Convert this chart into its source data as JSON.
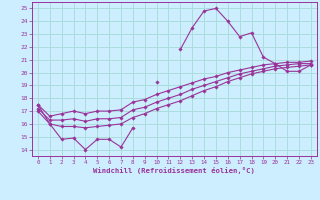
{
  "bg_color": "#cceeff",
  "grid_color": "#aadddd",
  "line_color": "#993399",
  "xlabel": "Windchill (Refroidissement éolien,°C)",
  "xlabel_color": "#993399",
  "yticks": [
    14,
    15,
    16,
    17,
    18,
    19,
    20,
    21,
    22,
    23,
    24,
    25
  ],
  "xticks": [
    0,
    1,
    2,
    3,
    4,
    5,
    6,
    7,
    8,
    9,
    10,
    11,
    12,
    13,
    14,
    15,
    16,
    17,
    18,
    19,
    20,
    21,
    22,
    23
  ],
  "ylim": [
    13.5,
    25.5
  ],
  "xlim": [
    -0.5,
    23.5
  ],
  "series1_y": [
    17.5,
    16.0,
    14.8,
    14.9,
    14.0,
    14.8,
    14.8,
    14.2,
    15.7,
    null,
    19.3,
    null,
    21.8,
    23.5,
    24.8,
    25.0,
    24.0,
    22.8,
    23.1,
    21.2,
    20.7,
    20.1,
    20.1,
    20.6
  ],
  "series2_y": [
    17.0,
    16.0,
    15.8,
    15.8,
    15.7,
    15.8,
    15.9,
    16.0,
    16.5,
    16.8,
    17.2,
    17.5,
    17.8,
    18.2,
    18.6,
    18.9,
    19.3,
    19.6,
    19.9,
    20.1,
    20.3,
    20.4,
    20.5,
    20.6
  ],
  "series3_y": [
    17.5,
    16.6,
    16.8,
    17.0,
    16.8,
    17.0,
    17.0,
    17.1,
    17.7,
    17.9,
    18.3,
    18.6,
    18.9,
    19.2,
    19.5,
    19.7,
    20.0,
    20.2,
    20.4,
    20.6,
    20.7,
    20.8,
    20.8,
    20.9
  ],
  "series4_y": [
    17.2,
    16.3,
    16.3,
    16.4,
    16.2,
    16.4,
    16.4,
    16.5,
    17.1,
    17.3,
    17.7,
    18.0,
    18.3,
    18.7,
    19.0,
    19.3,
    19.6,
    19.9,
    20.1,
    20.3,
    20.5,
    20.6,
    20.7,
    20.7
  ]
}
